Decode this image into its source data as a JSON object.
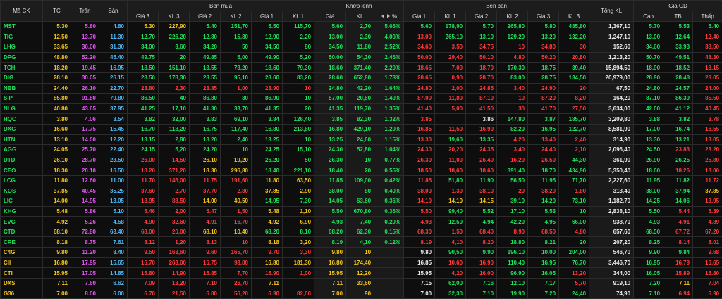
{
  "colors": {
    "up": "#1fe05a",
    "down": "#ff3a3a",
    "ref": "#f2c21b",
    "ceil": "#e055f0",
    "floor": "#4cb8f5",
    "plain": "#e8e8e8"
  },
  "table": {
    "group_headers": [
      "Mã CK",
      "TC",
      "Trần",
      "Sàn",
      "Bên mua",
      "Khớp lệnh",
      "Bên bán",
      "Tổng KL",
      "Giá GD"
    ],
    "buy_headers": [
      "Giá 3",
      "KL 3",
      "Giá 2",
      "KL 2",
      "Giá 1",
      "KL 1"
    ],
    "match_headers": [
      "Giá",
      "KL",
      "%"
    ],
    "sell_headers": [
      "Giá 1",
      "KL 1",
      "Giá 2",
      "KL 2",
      "Giá 3",
      "KL 3"
    ],
    "price_headers": [
      "Cao",
      "TB",
      "Thấp"
    ],
    "rows": [
      [
        "MST",
        "5.30",
        "5.80",
        "4.80",
        "5.30",
        "227,90",
        "5.40",
        "151,70",
        "5.50",
        "115,70",
        "5.60",
        "2,70",
        "5.66%",
        "5.60",
        "178,90",
        "5.70",
        "265,80",
        "5.80",
        "485,80",
        "1,367,10",
        "5.70",
        "5.53",
        "5.40"
      ],
      [
        "TIG",
        "12.50",
        "13.70",
        "11.30",
        "12.70",
        "226,20",
        "12.80",
        "15,80",
        "12.90",
        "2,20",
        "13.00",
        "2,30",
        "4.00%",
        "13.00",
        "265,10",
        "13.10",
        "129,20",
        "13.20",
        "132,20",
        "1,247,10",
        "13.00",
        "12.64",
        "12.40"
      ],
      [
        "LHG",
        "33.65",
        "36.00",
        "31.30",
        "34.00",
        "3,60",
        "34.20",
        "50",
        "34.50",
        "80",
        "34.50",
        "11,80",
        "2.52%",
        "34.60",
        "3,50",
        "34.75",
        "10",
        "34.80",
        "30",
        "152,60",
        "34.60",
        "33.93",
        "33.50"
      ],
      [
        "DPG",
        "48.80",
        "52.20",
        "45.40",
        "49.75",
        "20",
        "49.85",
        "5,00",
        "49.90",
        "5,20",
        "50.00",
        "54,30",
        "2.46%",
        "50.00",
        "29,40",
        "50.10",
        "4,80",
        "50.20",
        "20,80",
        "1,213,20",
        "50.70",
        "49.51",
        "48.30"
      ],
      [
        "TCH",
        "18.20",
        "19.45",
        "16.95",
        "18.50",
        "151,10",
        "18.55",
        "73,20",
        "18.60",
        "79,30",
        "18.60",
        "371,40",
        "2.20%",
        "18.65",
        "7,00",
        "18.70",
        "170,30",
        "18.75",
        "39,40",
        "15,894,50",
        "18.90",
        "18.52",
        "18.15"
      ],
      [
        "DIG",
        "28.10",
        "30.05",
        "26.15",
        "28.50",
        "178,30",
        "28.55",
        "95,10",
        "28.60",
        "83,20",
        "28.60",
        "652,80",
        "1.78%",
        "28.65",
        "0,90",
        "28.70",
        "83,00",
        "28.75",
        "134,50",
        "20,979,00",
        "28.90",
        "28.48",
        "28.05"
      ],
      [
        "NBB",
        "24.40",
        "26.10",
        "22.70",
        "23.80",
        "2,30",
        "23.85",
        "1,00",
        "23.90",
        "10",
        "24.80",
        "42,20",
        "1.64%",
        "24.80",
        "2,00",
        "24.85",
        "3,40",
        "24.90",
        "20",
        "67,50",
        "24.80",
        "24.57",
        "24.00"
      ],
      [
        "SIP",
        "85.80",
        "91.80",
        "79.80",
        "86.50",
        "40",
        "86.80",
        "30",
        "86.90",
        "10",
        "87.00",
        "20,80",
        "1.40%",
        "87.00",
        "11,80",
        "87.10",
        "10",
        "87.20",
        "8,20",
        "164,20",
        "87.10",
        "86.39",
        "85.50"
      ],
      [
        "NLG",
        "40.80",
        "43.65",
        "37.95",
        "41.25",
        "17,10",
        "41.30",
        "33,70",
        "41.35",
        "20",
        "41.35",
        "119,70",
        "1.35%",
        "41.40",
        "5,00",
        "41.50",
        "30",
        "41.70",
        "27,50",
        "3,634,00",
        "42.00",
        "41.12",
        "40.45"
      ],
      [
        "HQC",
        "3.80",
        "4.06",
        "3.54",
        "3.82",
        "32,00",
        "3.83",
        "69,10",
        "3.84",
        "126,40",
        "3.85",
        "82,30",
        "1.32%",
        "3.85",
        null,
        "3.86",
        "147,80",
        "3.87",
        "185,70",
        "3,209,80",
        "3.88",
        "3.82",
        "3.78"
      ],
      [
        "DXG",
        "16.60",
        "17.75",
        "15.45",
        "16.70",
        "118,20",
        "16.75",
        "117,40",
        "16.80",
        "213,80",
        "16.80",
        "429,10",
        "1.20%",
        "16.85",
        "11,50",
        "16.90",
        "82,20",
        "16.95",
        "122,70",
        "8,581,90",
        "17.00",
        "16.74",
        "16.55"
      ],
      [
        "HTN",
        "13.10",
        "14.00",
        "12.20",
        "13.15",
        "2,80",
        "13.20",
        "2,40",
        "13.25",
        "10",
        "13.25",
        "24,60",
        "1.15%",
        "13.30",
        "19,60",
        "13.35",
        "4,20",
        "13.40",
        "2,40",
        "314,90",
        "13.30",
        "13.21",
        "13.05"
      ],
      [
        "AGG",
        "24.05",
        "25.70",
        "22.40",
        "24.15",
        "5,20",
        "24.20",
        "10",
        "24.25",
        "15,10",
        "24.30",
        "52,80",
        "1.04%",
        "24.30",
        "20,20",
        "24.35",
        "3,40",
        "24.40",
        "2,10",
        "2,096,40",
        "24.50",
        "23.83",
        "23.20"
      ],
      [
        "DTD",
        "26.10",
        "28.70",
        "23.50",
        "26.00",
        "14,50",
        "26.10",
        "19,20",
        "26.20",
        "50",
        "26.30",
        "10",
        "0.77%",
        "26.30",
        "11,00",
        "26.40",
        "16,20",
        "26.50",
        "44,30",
        "361,90",
        "26.90",
        "26.25",
        "25.80"
      ],
      [
        "CEO",
        "18.30",
        "20.10",
        "16.50",
        "18.20",
        "371,20",
        "18.30",
        "296,80",
        "18.40",
        "221,10",
        "18.40",
        "20",
        "0.55%",
        "18.50",
        "18,60",
        "18.60",
        "391,40",
        "18.70",
        "434,90",
        "5,350,40",
        "18.60",
        "18.26",
        "18.00"
      ],
      [
        "LCG",
        "11.80",
        "12.60",
        "11.00",
        "11.70",
        "146,00",
        "11.75",
        "191,60",
        "11.80",
        "63,50",
        "11.85",
        "109,00",
        "0.42%",
        "11.85",
        "51,80",
        "11.90",
        "56,50",
        "11.95",
        "71,70",
        "2,227,60",
        "11.95",
        "11.82",
        "11.72"
      ],
      [
        "KOS",
        "37.85",
        "40.45",
        "35.25",
        "37.60",
        "2,70",
        "37.70",
        "2,80",
        "37.85",
        "2,90",
        "38.00",
        "80",
        "0.40%",
        "38.00",
        "1,30",
        "38.10",
        "20",
        "38.20",
        "1,80",
        "313,40",
        "38.00",
        "37.94",
        "37.85"
      ],
      [
        "LIC",
        "14.00",
        "14.95",
        "13.05",
        "13.95",
        "88,50",
        "14.00",
        "40,50",
        "14.05",
        "7,30",
        "14.05",
        "63,60",
        "0.36%",
        "14.10",
        "14,10",
        "14.15",
        "39,10",
        "14.20",
        "73,10",
        "1,182,70",
        "14.25",
        "14.06",
        "13.95"
      ],
      [
        "KHG",
        "5.48",
        "5.86",
        "5.10",
        "5.46",
        "2,00",
        "5.47",
        "1,50",
        "5.48",
        "1,10",
        "5.50",
        "670,80",
        "0.36%",
        "5.50",
        "99,40",
        "5.52",
        "17,10",
        "5.53",
        "10",
        "2,838,10",
        "5.50",
        "5.44",
        "5.39"
      ],
      [
        "EVG",
        "4.92",
        "5.26",
        "4.58",
        "4.90",
        "32,60",
        "4.91",
        "16,70",
        "4.92",
        "6,90",
        "4.93",
        "7,40",
        "0.20%",
        "4.93",
        "12,50",
        "4.94",
        "42,20",
        "4.95",
        "66,00",
        "938,70",
        "4.93",
        "4.91",
        "4.89"
      ],
      [
        "CTD",
        "68.10",
        "72.80",
        "63.40",
        "68.00",
        "20,00",
        "68.10",
        "10,40",
        "68.20",
        "8,10",
        "68.20",
        "62,30",
        "0.15%",
        "68.30",
        "1,50",
        "68.40",
        "8,90",
        "68.50",
        "4,80",
        "657,60",
        "68.50",
        "67.72",
        "67.20"
      ],
      [
        "CRE",
        "8.18",
        "8.75",
        "7.61",
        "8.12",
        "1,20",
        "8.13",
        "10",
        "8.18",
        "3,20",
        "8.19",
        "4,10",
        "0.12%",
        "8.19",
        "4,10",
        "8.20",
        "18,80",
        "8.21",
        "20",
        "207,20",
        "8.25",
        "8.14",
        "8.01"
      ],
      [
        "C4G",
        "9.80",
        "11.20",
        "8.40",
        "9.50",
        "163,60",
        "9.60",
        "165,70",
        "9.70",
        "3,30",
        "9.80",
        "10",
        null,
        "9.80",
        "90,50",
        "9.90",
        "196,10",
        "10.00",
        "204,00",
        "546,70",
        "9.90",
        "9.84",
        "9.68"
      ],
      [
        "CII",
        "16.80",
        "17.95",
        "15.65",
        "16.70",
        "263,00",
        "16.75",
        "98,80",
        "16.80",
        "181,30",
        "16.80",
        "174,40",
        null,
        "16.85",
        "10,60",
        "16.90",
        "110,40",
        "16.95",
        "76,70",
        "3,446,70",
        "16.95",
        "16.79",
        "16.65"
      ],
      [
        "CTI",
        "15.95",
        "17.05",
        "14.85",
        "15.80",
        "14,90",
        "15.85",
        "7,70",
        "15.90",
        "1,00",
        "15.95",
        "12,20",
        null,
        "15.95",
        "4,20",
        "16.00",
        "96,90",
        "16.05",
        "13,20",
        "344,00",
        "16.05",
        "15.89",
        "15.80"
      ],
      [
        "DXS",
        "7.11",
        "7.60",
        "6.62",
        "7.09",
        "18,20",
        "7.10",
        "26,70",
        "7.11",
        null,
        "7.11",
        "33,60",
        null,
        "7.15",
        "62,00",
        "7.16",
        "12,10",
        "7.17",
        "5,70",
        "919,10",
        "7.20",
        "7.11",
        "7.04"
      ],
      [
        "G36",
        "7.00",
        "8.00",
        "6.00",
        "6.70",
        "21,50",
        "6.80",
        "56,20",
        "6.90",
        "82,00",
        "7.00",
        "90",
        null,
        "7.00",
        "32,30",
        "7.10",
        "19,90",
        "7.20",
        "24,40",
        "74,90",
        "7.10",
        "6.94",
        "6.90"
      ]
    ]
  }
}
